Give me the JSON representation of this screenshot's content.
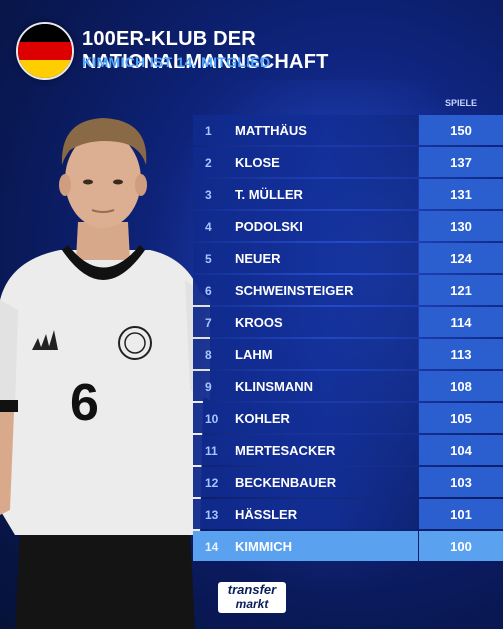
{
  "header": {
    "title": "100ER-KLUB DER NATIONALMANNSCHAFT",
    "subtitle": "KIMMICH IST 14. MITGLIED"
  },
  "table": {
    "column_label": "SPIELE",
    "rows": [
      {
        "rank": "1",
        "name": "MATTHÄUS",
        "games": "150"
      },
      {
        "rank": "2",
        "name": "KLOSE",
        "games": "137"
      },
      {
        "rank": "3",
        "name": "T. MÜLLER",
        "games": "131"
      },
      {
        "rank": "4",
        "name": "PODOLSKI",
        "games": "130"
      },
      {
        "rank": "5",
        "name": "NEUER",
        "games": "124"
      },
      {
        "rank": "6",
        "name": "SCHWEINSTEIGER",
        "games": "121"
      },
      {
        "rank": "7",
        "name": "KROOS",
        "games": "114"
      },
      {
        "rank": "8",
        "name": "LAHM",
        "games": "113"
      },
      {
        "rank": "9",
        "name": "KLINSMANN",
        "games": "108"
      },
      {
        "rank": "10",
        "name": "KOHLER",
        "games": "105"
      },
      {
        "rank": "11",
        "name": "MERTESACKER",
        "games": "104"
      },
      {
        "rank": "12",
        "name": "BECKENBAUER",
        "games": "103"
      },
      {
        "rank": "13",
        "name": "HÄSSLER",
        "games": "101"
      },
      {
        "rank": "14",
        "name": "KIMMICH",
        "games": "100"
      }
    ]
  },
  "player": {
    "shirt_number": "6"
  },
  "logo": {
    "line1": "transfer",
    "line2": "markt"
  },
  "colors": {
    "flag": [
      "#000000",
      "#dd0000",
      "#ffce00"
    ],
    "highlight": "#5aa2f0",
    "accent": "#4fa6ff"
  }
}
